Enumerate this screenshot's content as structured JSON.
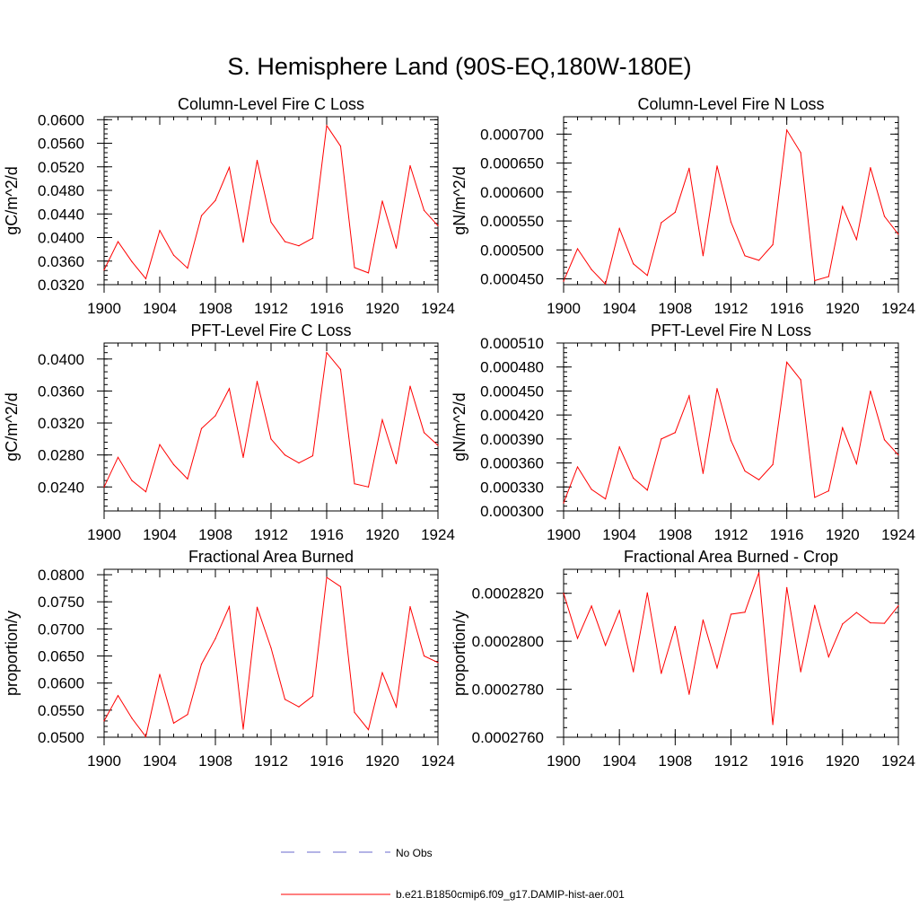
{
  "figure": {
    "title": "S. Hemisphere Land (90S-EQ,180W-180E)"
  },
  "legend": {
    "items": [
      {
        "label": "No Obs",
        "color": "#6a6acd",
        "dash": "dashed"
      },
      {
        "label": "b.e21.B1850cmip6.f09_g17.DAMIP-hist-aer.001",
        "color": "#ff0000",
        "dash": "solid"
      }
    ]
  },
  "colors": {
    "series": "#ff0000",
    "axis": "#000000"
  },
  "chart_data": [
    {
      "type": "line",
      "title": "Column-Level Fire C Loss",
      "ylabel": "gC/m^2/d",
      "xlabel": "",
      "xlim": [
        1900,
        1924
      ],
      "ylim": [
        0.032,
        0.0605
      ],
      "xticks": [
        1900,
        1904,
        1908,
        1912,
        1916,
        1920,
        1924
      ],
      "yticks": [
        0.032,
        0.036,
        0.04,
        0.044,
        0.048,
        0.052,
        0.056,
        0.06
      ],
      "ytick_labels": [
        "0.0320",
        "0.0360",
        "0.0400",
        "0.0440",
        "0.0480",
        "0.0520",
        "0.0560",
        "0.0600"
      ],
      "x": [
        1900,
        1901,
        1902,
        1903,
        1904,
        1905,
        1906,
        1907,
        1908,
        1909,
        1910,
        1911,
        1912,
        1913,
        1914,
        1915,
        1916,
        1917,
        1918,
        1919,
        1920,
        1921,
        1922,
        1923,
        1924
      ],
      "series": [
        {
          "values": [
            0.0345,
            0.0393,
            0.0359,
            0.033,
            0.0412,
            0.037,
            0.0348,
            0.0437,
            0.0463,
            0.0519,
            0.0392,
            0.0531,
            0.0426,
            0.0393,
            0.0386,
            0.0399,
            0.059,
            0.0555,
            0.0349,
            0.034,
            0.0462,
            0.0382,
            0.0522,
            0.0446,
            0.042
          ]
        }
      ]
    },
    {
      "type": "line",
      "title": "Column-Level Fire N Loss",
      "ylabel": "gN/m^2/d",
      "xlabel": "",
      "xlim": [
        1900,
        1924
      ],
      "ylim": [
        0.00044,
        0.00073
      ],
      "xticks": [
        1900,
        1904,
        1908,
        1912,
        1916,
        1920,
        1924
      ],
      "yticks": [
        0.00045,
        0.0005,
        0.00055,
        0.0006,
        0.00065,
        0.0007
      ],
      "ytick_labels": [
        "0.000450",
        "0.000500",
        "0.000550",
        "0.000600",
        "0.000650",
        "0.000700"
      ],
      "x": [
        1900,
        1901,
        1902,
        1903,
        1904,
        1905,
        1906,
        1907,
        1908,
        1909,
        1910,
        1911,
        1912,
        1913,
        1914,
        1915,
        1916,
        1917,
        1918,
        1919,
        1920,
        1921,
        1922,
        1923,
        1924
      ],
      "series": [
        {
          "values": [
            0.000446,
            0.000502,
            0.000466,
            0.000441,
            0.000537,
            0.000476,
            0.000456,
            0.000547,
            0.000565,
            0.000641,
            0.00049,
            0.000645,
            0.000548,
            0.00049,
            0.000482,
            0.000509,
            0.000707,
            0.000668,
            0.000447,
            0.000454,
            0.000575,
            0.000518,
            0.000642,
            0.000558,
            0.000527
          ]
        }
      ]
    },
    {
      "type": "line",
      "title": "PFT-Level Fire C Loss",
      "ylabel": "gC/m^2/d",
      "xlabel": "",
      "xlim": [
        1900,
        1924
      ],
      "ylim": [
        0.021,
        0.042
      ],
      "xticks": [
        1900,
        1904,
        1908,
        1912,
        1916,
        1920,
        1924
      ],
      "yticks": [
        0.024,
        0.028,
        0.032,
        0.036,
        0.04
      ],
      "ytick_labels": [
        "0.0240",
        "0.0280",
        "0.0320",
        "0.0360",
        "0.0400"
      ],
      "x": [
        1900,
        1901,
        1902,
        1903,
        1904,
        1905,
        1906,
        1907,
        1908,
        1909,
        1910,
        1911,
        1912,
        1913,
        1914,
        1915,
        1916,
        1917,
        1918,
        1919,
        1920,
        1921,
        1922,
        1923,
        1924
      ],
      "series": [
        {
          "values": [
            0.024,
            0.0277,
            0.0248,
            0.0234,
            0.0293,
            0.0268,
            0.025,
            0.0313,
            0.0329,
            0.0363,
            0.0277,
            0.0372,
            0.03,
            0.028,
            0.027,
            0.0279,
            0.0408,
            0.0387,
            0.0244,
            0.024,
            0.0324,
            0.0269,
            0.0366,
            0.0308,
            0.0292
          ]
        }
      ]
    },
    {
      "type": "line",
      "title": "PFT-Level Fire N Loss",
      "ylabel": "gN/m^2/d",
      "xlabel": "",
      "xlim": [
        1900,
        1924
      ],
      "ylim": [
        0.0003,
        0.00051
      ],
      "xticks": [
        1900,
        1904,
        1908,
        1912,
        1916,
        1920,
        1924
      ],
      "yticks": [
        0.0003,
        0.00033,
        0.00036,
        0.00039,
        0.00042,
        0.00045,
        0.00048,
        0.00051
      ],
      "ytick_labels": [
        "0.000300",
        "0.000330",
        "0.000360",
        "0.000390",
        "0.000420",
        "0.000450",
        "0.000480",
        "0.000510"
      ],
      "x": [
        1900,
        1901,
        1902,
        1903,
        1904,
        1905,
        1906,
        1907,
        1908,
        1909,
        1910,
        1911,
        1912,
        1913,
        1914,
        1915,
        1916,
        1917,
        1918,
        1919,
        1920,
        1921,
        1922,
        1923,
        1924
      ],
      "series": [
        {
          "values": [
            0.00031,
            0.000355,
            0.000327,
            0.000315,
            0.00038,
            0.000341,
            0.000326,
            0.00039,
            0.000398,
            0.000444,
            0.000347,
            0.000453,
            0.000388,
            0.00035,
            0.000339,
            0.000358,
            0.000486,
            0.000464,
            0.000317,
            0.000325,
            0.000404,
            0.000359,
            0.00045,
            0.000389,
            0.00037
          ]
        }
      ]
    },
    {
      "type": "line",
      "title": "Fractional Area Burned",
      "ylabel": "proportion/y",
      "xlabel": "",
      "xlim": [
        1900,
        1924
      ],
      "ylim": [
        0.05,
        0.081
      ],
      "xticks": [
        1900,
        1904,
        1908,
        1912,
        1916,
        1920,
        1924
      ],
      "yticks": [
        0.05,
        0.055,
        0.06,
        0.065,
        0.07,
        0.075,
        0.08
      ],
      "ytick_labels": [
        "0.0500",
        "0.0550",
        "0.0600",
        "0.0650",
        "0.0700",
        "0.0750",
        "0.0800"
      ],
      "x": [
        1900,
        1901,
        1902,
        1903,
        1904,
        1905,
        1906,
        1907,
        1908,
        1909,
        1910,
        1911,
        1912,
        1913,
        1914,
        1915,
        1916,
        1917,
        1918,
        1919,
        1920,
        1921,
        1922,
        1923,
        1924
      ],
      "series": [
        {
          "values": [
            0.053,
            0.0577,
            0.0535,
            0.0501,
            0.0616,
            0.0526,
            0.0542,
            0.0635,
            0.0682,
            0.0741,
            0.0515,
            0.074,
            0.0665,
            0.057,
            0.0556,
            0.0576,
            0.0795,
            0.0778,
            0.0546,
            0.0514,
            0.0619,
            0.0556,
            0.0741,
            0.065,
            0.0638
          ]
        }
      ]
    },
    {
      "type": "line",
      "title": "Fractional Area Burned - Crop",
      "ylabel": "proportion/y",
      "xlabel": "",
      "xlim": [
        1900,
        1924
      ],
      "ylim": [
        0.000276,
        0.000283
      ],
      "xticks": [
        1900,
        1904,
        1908,
        1912,
        1916,
        1920,
        1924
      ],
      "yticks": [
        0.000276,
        0.000278,
        0.00028,
        0.000282
      ],
      "ytick_labels": [
        "0.0002760",
        "0.0002780",
        "0.0002800",
        "0.0002820"
      ],
      "x": [
        1900,
        1901,
        1902,
        1903,
        1904,
        1905,
        1906,
        1907,
        1908,
        1909,
        1910,
        1911,
        1912,
        1913,
        1914,
        1915,
        1916,
        1917,
        1918,
        1919,
        1920,
        1921,
        1922,
        1923,
        1924
      ],
      "series": [
        {
          "values": [
            0.000282,
            0.00028012,
            0.00028147,
            0.00027983,
            0.00028128,
            0.00027873,
            0.00028202,
            0.00027866,
            0.00028062,
            0.00027779,
            0.00028089,
            0.00027889,
            0.00028113,
            0.00028121,
            0.00028286,
            0.00027653,
            0.00028224,
            0.00027873,
            0.0002815,
            0.00027935,
            0.00028072,
            0.0002812,
            0.00028077,
            0.00028075,
            0.00028148
          ]
        }
      ]
    }
  ]
}
